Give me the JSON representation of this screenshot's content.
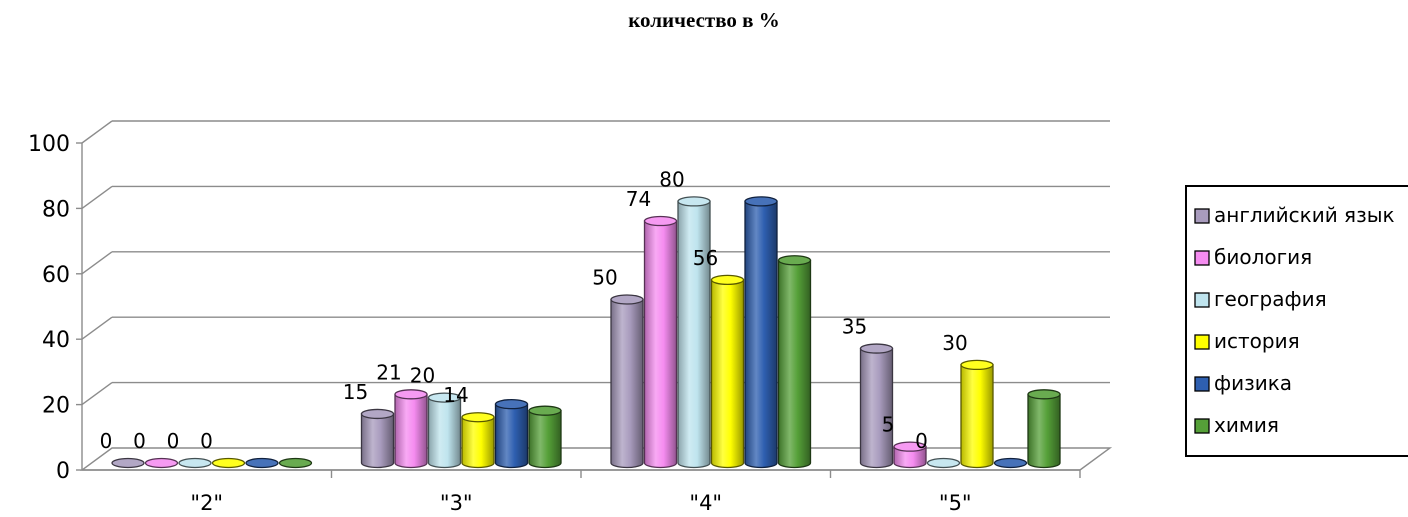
{
  "chart_data": {
    "type": "bar",
    "title": "количество в %",
    "categories": [
      "\"2\"",
      "\"3\"",
      "\"4\"",
      "\"5\""
    ],
    "ylim": [
      0,
      100
    ],
    "yticks": [
      "0",
      "20",
      "40",
      "60",
      "80",
      "100"
    ],
    "grid": true,
    "legend_position": "right",
    "series": [
      {
        "name": "английский язык",
        "color": "#a89bbd",
        "values": [
          0,
          15,
          50,
          35
        ],
        "labels": [
          "0",
          "15",
          "50",
          "35"
        ]
      },
      {
        "name": "биология",
        "color": "#f58cf0",
        "values": [
          0,
          21,
          74,
          5
        ],
        "labels": [
          "0",
          "21",
          "74",
          "5"
        ]
      },
      {
        "name": "география",
        "color": "#bfe4ee",
        "values": [
          0,
          20,
          80,
          0
        ],
        "labels": [
          "0",
          "20",
          "80",
          "0"
        ]
      },
      {
        "name": "история",
        "color": "#ffff00",
        "values": [
          0,
          14,
          56,
          30
        ],
        "labels": [
          "0",
          "14",
          "56",
          "30"
        ]
      },
      {
        "name": "физика",
        "color": "#2e5fb0",
        "values": [
          0,
          18,
          80,
          0
        ],
        "labels": [
          "",
          "",
          "",
          ""
        ]
      },
      {
        "name": "химия",
        "color": "#55a038",
        "values": [
          0,
          16,
          62,
          21
        ],
        "labels": [
          "",
          "",
          "",
          ""
        ]
      }
    ]
  }
}
